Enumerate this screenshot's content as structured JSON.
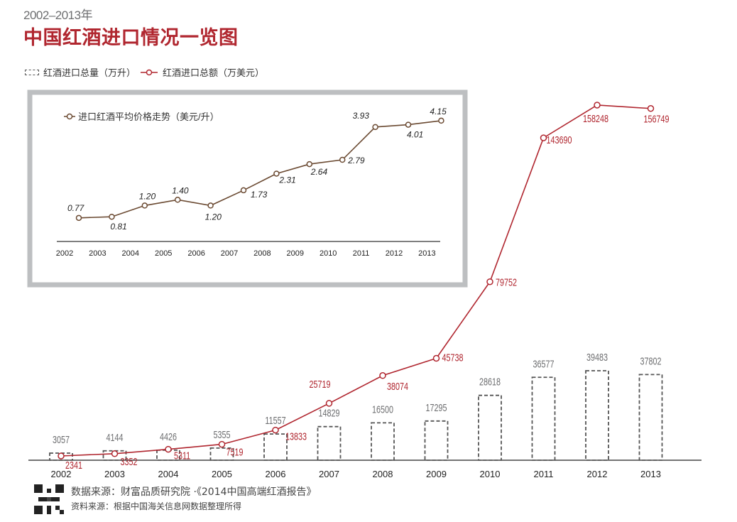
{
  "header": {
    "subtitle": "2002–2013年",
    "title": "中国红酒进口情况一览图"
  },
  "legend": {
    "volume_label": "红酒进口总量（万升）",
    "value_label": "红酒进口总额（万美元）"
  },
  "footer": {
    "source_primary": "数据来源：财富品质研究院 ·《2014中国高端红酒报告》",
    "source_secondary": "资料来源：根据中国海关信息网数据整理所得",
    "qr_icon": "qr-code-icon"
  },
  "colors": {
    "title": "#b0262f",
    "value_line": "#b0262f",
    "volume_bar": "#555555",
    "price_line": "#6b4a32",
    "inset_border": "#bdbfc1"
  },
  "chart_data": [
    {
      "type": "bar+line",
      "title": "中国红酒进口情况一览图",
      "subtitle": "2002–2013年",
      "categories": [
        "2002",
        "2003",
        "2004",
        "2005",
        "2006",
        "2007",
        "2008",
        "2009",
        "2010",
        "2011",
        "2012",
        "2013"
      ],
      "series": [
        {
          "name": "红酒进口总量（万升）",
          "type": "bar",
          "style": "dashed-outline",
          "values": [
            3057,
            4144,
            4426,
            5355,
            11557,
            14829,
            16500,
            17295,
            28618,
            36577,
            39483,
            37802
          ]
        },
        {
          "name": "红酒进口总额（万美元）",
          "type": "line",
          "marker": "hollow-circle",
          "values": [
            2341,
            3352,
            5311,
            7519,
            13833,
            25719,
            38074,
            45738,
            79752,
            143690,
            158248,
            156749
          ]
        }
      ],
      "xlabel": "",
      "ylabel": "",
      "grid": false,
      "legend_position": "top-left"
    },
    {
      "type": "line",
      "title": "进口红酒平均价格走势（美元/升）",
      "categories": [
        "2002",
        "2003",
        "2004",
        "2005",
        "2006",
        "2007",
        "2008",
        "2009",
        "2010",
        "2011",
        "2012",
        "2013"
      ],
      "series": [
        {
          "name": "进口红酒平均价格走势（美元/升）",
          "values": [
            0.77,
            0.81,
            1.2,
            1.4,
            1.2,
            1.73,
            2.31,
            2.64,
            2.79,
            3.93,
            4.01,
            4.15
          ],
          "labels": [
            "0.77",
            "0.81",
            "1.20",
            "1.40",
            "1.20",
            "1.73",
            "2.31",
            "2.64",
            "2.79",
            "3.93",
            "4.01",
            "4.15"
          ]
        }
      ],
      "grid": false,
      "legend_position": "top-left"
    }
  ]
}
